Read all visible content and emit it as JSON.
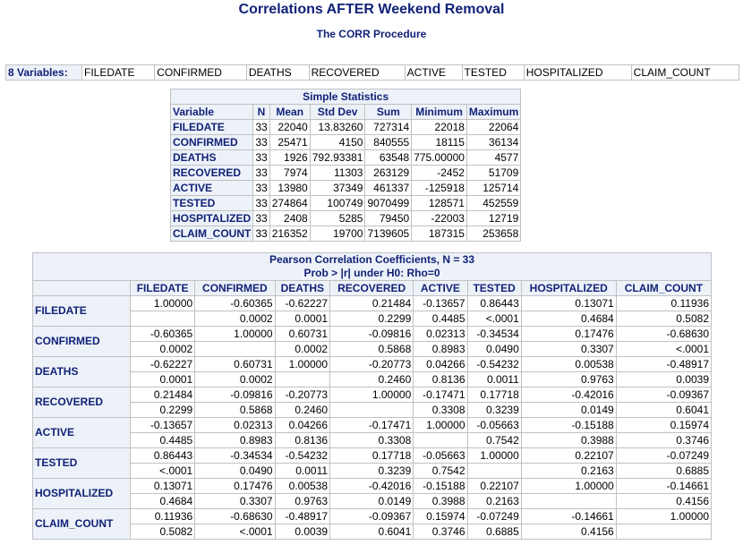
{
  "title": "Correlations AFTER Weekend Removal",
  "subtitle": "The CORR Procedure",
  "variables": {
    "label": "8  Variables:",
    "names": [
      "FILEDATE",
      "CONFIRMED",
      "DEATHS",
      "RECOVERED",
      "ACTIVE",
      "TESTED",
      "HOSPITALIZED",
      "CLAIM_COUNT"
    ]
  },
  "stats": {
    "caption": "Simple Statistics",
    "headers": [
      "Variable",
      "N",
      "Mean",
      "Std Dev",
      "Sum",
      "Minimum",
      "Maximum"
    ],
    "rows": [
      [
        "FILEDATE",
        "33",
        "22040",
        "13.83260",
        "727314",
        "22018",
        "22064"
      ],
      [
        "CONFIRMED",
        "33",
        "25471",
        "4150",
        "840555",
        "18115",
        "36134"
      ],
      [
        "DEATHS",
        "33",
        "1926",
        "792.93381",
        "63548",
        "775.00000",
        "4577"
      ],
      [
        "RECOVERED",
        "33",
        "7974",
        "11303",
        "263129",
        "-2452",
        "51709"
      ],
      [
        "ACTIVE",
        "33",
        "13980",
        "37349",
        "461337",
        "-125918",
        "125714"
      ],
      [
        "TESTED",
        "33",
        "274864",
        "100749",
        "9070499",
        "128571",
        "452559"
      ],
      [
        "HOSPITALIZED",
        "33",
        "2408",
        "5285",
        "79450",
        "-22003",
        "12719"
      ],
      [
        "CLAIM_COUNT",
        "33",
        "216352",
        "19700",
        "7139605",
        "187315",
        "253658"
      ]
    ]
  },
  "corr": {
    "caption1": "Pearson Correlation Coefficients, N = 33",
    "caption2": "Prob > |r| under H0: Rho=0",
    "columns": [
      "FILEDATE",
      "CONFIRMED",
      "DEATHS",
      "RECOVERED",
      "ACTIVE",
      "TESTED",
      "HOSPITALIZED",
      "CLAIM_COUNT"
    ],
    "rows": [
      {
        "name": "FILEDATE",
        "r": [
          "1.00000",
          "-0.60365",
          "-0.62227",
          "0.21484",
          "-0.13657",
          "0.86443",
          "0.13071",
          "0.11936"
        ],
        "p": [
          "",
          "0.0002",
          "0.0001",
          "0.2299",
          "0.4485",
          "<.0001",
          "0.4684",
          "0.5082"
        ]
      },
      {
        "name": "CONFIRMED",
        "r": [
          "-0.60365",
          "1.00000",
          "0.60731",
          "-0.09816",
          "0.02313",
          "-0.34534",
          "0.17476",
          "-0.68630"
        ],
        "p": [
          "0.0002",
          "",
          "0.0002",
          "0.5868",
          "0.8983",
          "0.0490",
          "0.3307",
          "<.0001"
        ]
      },
      {
        "name": "DEATHS",
        "r": [
          "-0.62227",
          "0.60731",
          "1.00000",
          "-0.20773",
          "0.04266",
          "-0.54232",
          "0.00538",
          "-0.48917"
        ],
        "p": [
          "0.0001",
          "0.0002",
          "",
          "0.2460",
          "0.8136",
          "0.0011",
          "0.9763",
          "0.0039"
        ]
      },
      {
        "name": "RECOVERED",
        "r": [
          "0.21484",
          "-0.09816",
          "-0.20773",
          "1.00000",
          "-0.17471",
          "0.17718",
          "-0.42016",
          "-0.09367"
        ],
        "p": [
          "0.2299",
          "0.5868",
          "0.2460",
          "",
          "0.3308",
          "0.3239",
          "0.0149",
          "0.6041"
        ]
      },
      {
        "name": "ACTIVE",
        "r": [
          "-0.13657",
          "0.02313",
          "0.04266",
          "-0.17471",
          "1.00000",
          "-0.05663",
          "-0.15188",
          "0.15974"
        ],
        "p": [
          "0.4485",
          "0.8983",
          "0.8136",
          "0.3308",
          "",
          "0.7542",
          "0.3988",
          "0.3746"
        ]
      },
      {
        "name": "TESTED",
        "r": [
          "0.86443",
          "-0.34534",
          "-0.54232",
          "0.17718",
          "-0.05663",
          "1.00000",
          "0.22107",
          "-0.07249"
        ],
        "p": [
          "<.0001",
          "0.0490",
          "0.0011",
          "0.3239",
          "0.7542",
          "",
          "0.2163",
          "0.6885"
        ]
      },
      {
        "name": "HOSPITALIZED",
        "r": [
          "0.13071",
          "0.17476",
          "0.00538",
          "-0.42016",
          "-0.15188",
          "0.22107",
          "1.00000",
          "-0.14661"
        ],
        "p": [
          "0.4684",
          "0.3307",
          "0.9763",
          "0.0149",
          "0.3988",
          "0.2163",
          "",
          "0.4156"
        ]
      },
      {
        "name": "CLAIM_COUNT",
        "r": [
          "0.11936",
          "-0.68630",
          "-0.48917",
          "-0.09367",
          "0.15974",
          "-0.07249",
          "-0.14661",
          "1.00000"
        ],
        "p": [
          "0.5082",
          "<.0001",
          "0.0039",
          "0.6041",
          "0.3746",
          "0.6885",
          "0.4156",
          ""
        ]
      }
    ]
  }
}
